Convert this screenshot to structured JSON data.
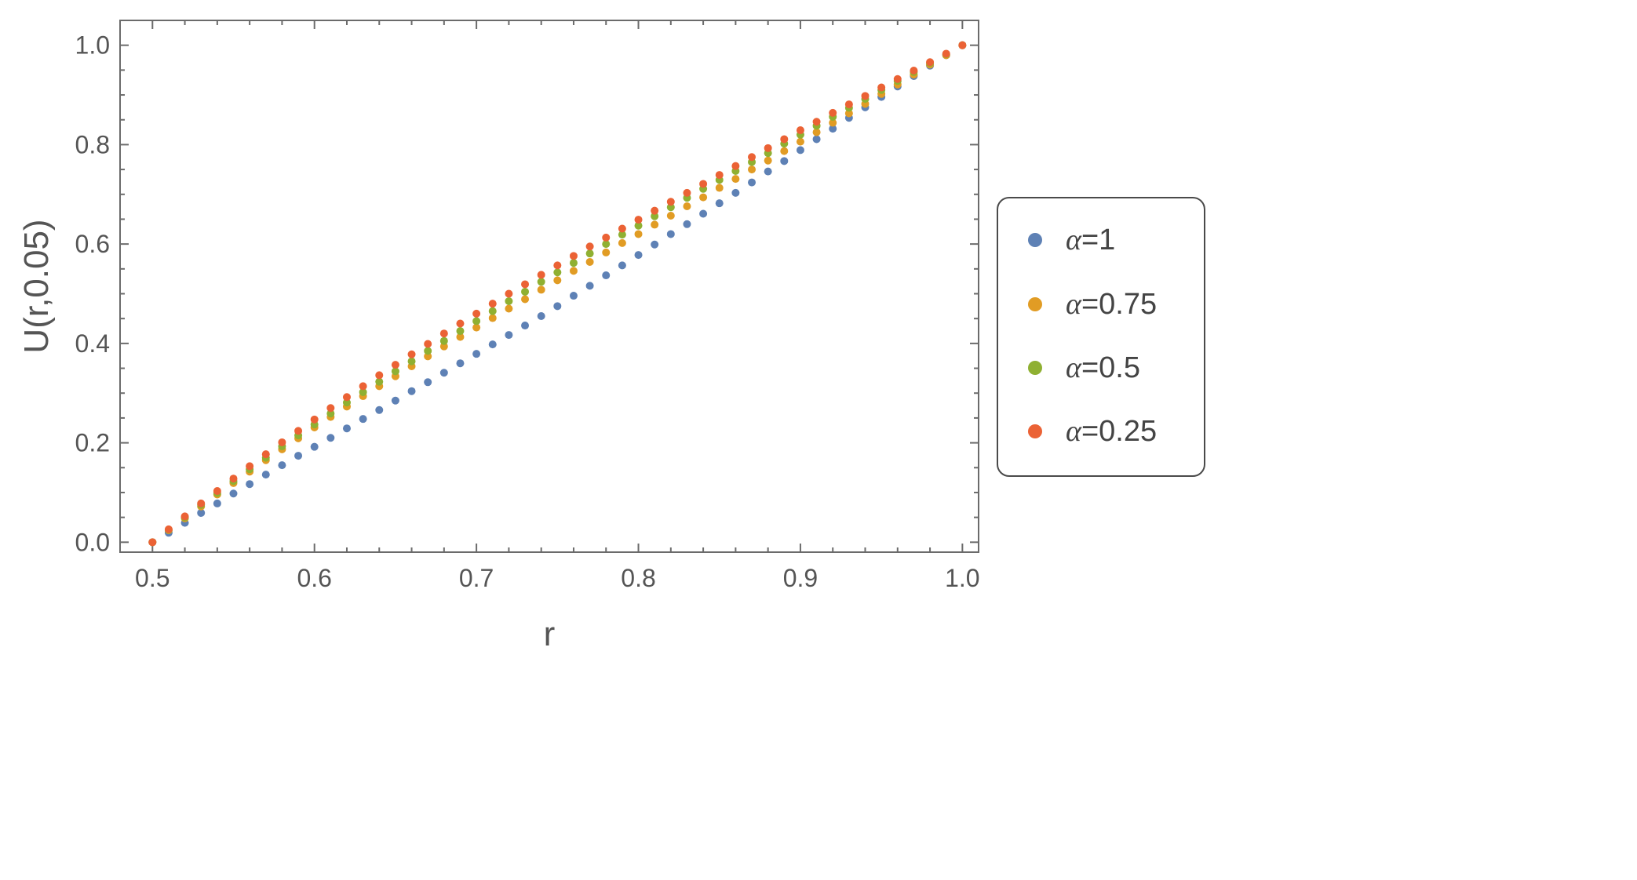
{
  "chart_data": {
    "type": "scatter",
    "title": "",
    "xlabel": "r",
    "ylabel": "U(r,0.05)",
    "xlim": [
      0.48,
      1.01
    ],
    "ylim": [
      -0.02,
      1.05
    ],
    "xticks": [
      0.5,
      0.6,
      0.7,
      0.8,
      0.9,
      1.0
    ],
    "xtick_labels": [
      "0.5",
      "0.6",
      "0.7",
      "0.8",
      "0.9",
      "1.0"
    ],
    "yticks": [
      0.0,
      0.2,
      0.4,
      0.6,
      0.8,
      1.0
    ],
    "ytick_labels": [
      "0.0",
      "0.2",
      "0.4",
      "0.6",
      "0.8",
      "1.0"
    ],
    "grid": false,
    "frame": true,
    "legend_position": "right",
    "x": [
      0.5,
      0.51,
      0.52,
      0.53,
      0.54,
      0.55,
      0.56,
      0.57,
      0.58,
      0.59,
      0.6,
      0.61,
      0.62,
      0.63,
      0.64,
      0.65,
      0.66,
      0.67,
      0.68,
      0.69,
      0.7,
      0.71,
      0.72,
      0.73,
      0.74,
      0.75,
      0.76,
      0.77,
      0.78,
      0.79,
      0.8,
      0.81,
      0.82,
      0.83,
      0.84,
      0.85,
      0.86,
      0.87,
      0.88,
      0.89,
      0.9,
      0.91,
      0.92,
      0.93,
      0.94,
      0.95,
      0.96,
      0.97,
      0.98,
      0.99,
      1.0
    ],
    "series": [
      {
        "name": "α=1",
        "symbol": "α",
        "value_text": "=1",
        "color": "#5e81b5",
        "values": [
          0.0,
          0.019,
          0.039,
          0.059,
          0.078,
          0.098,
          0.117,
          0.136,
          0.155,
          0.174,
          0.192,
          0.21,
          0.229,
          0.248,
          0.266,
          0.285,
          0.304,
          0.322,
          0.341,
          0.36,
          0.379,
          0.398,
          0.417,
          0.436,
          0.455,
          0.475,
          0.496,
          0.516,
          0.537,
          0.557,
          0.578,
          0.599,
          0.62,
          0.64,
          0.661,
          0.682,
          0.703,
          0.724,
          0.746,
          0.767,
          0.789,
          0.811,
          0.832,
          0.854,
          0.875,
          0.896,
          0.917,
          0.938,
          0.959,
          0.98,
          1.0
        ]
      },
      {
        "name": "α=0.75",
        "symbol": "α",
        "value_text": "=0.75",
        "color": "#e19c24",
        "values": [
          0.0,
          0.024,
          0.048,
          0.072,
          0.096,
          0.119,
          0.142,
          0.165,
          0.187,
          0.209,
          0.231,
          0.252,
          0.273,
          0.294,
          0.314,
          0.334,
          0.354,
          0.374,
          0.394,
          0.413,
          0.432,
          0.451,
          0.47,
          0.489,
          0.508,
          0.527,
          0.546,
          0.564,
          0.583,
          0.602,
          0.62,
          0.639,
          0.657,
          0.676,
          0.694,
          0.713,
          0.731,
          0.75,
          0.768,
          0.787,
          0.806,
          0.825,
          0.844,
          0.863,
          0.882,
          0.902,
          0.921,
          0.941,
          0.961,
          0.98,
          1.0
        ]
      },
      {
        "name": "α=0.5",
        "symbol": "α",
        "value_text": "=0.5",
        "color": "#8fb032",
        "values": [
          0.0,
          0.025,
          0.05,
          0.075,
          0.099,
          0.123,
          0.147,
          0.17,
          0.193,
          0.215,
          0.237,
          0.259,
          0.281,
          0.302,
          0.323,
          0.344,
          0.364,
          0.385,
          0.405,
          0.425,
          0.445,
          0.465,
          0.485,
          0.504,
          0.524,
          0.543,
          0.562,
          0.581,
          0.6,
          0.619,
          0.637,
          0.656,
          0.674,
          0.693,
          0.711,
          0.729,
          0.747,
          0.765,
          0.783,
          0.802,
          0.82,
          0.838,
          0.856,
          0.874,
          0.892,
          0.91,
          0.928,
          0.946,
          0.964,
          0.982,
          1.0
        ]
      },
      {
        "name": "α=0.25",
        "symbol": "α",
        "value_text": "=0.25",
        "color": "#eb6235",
        "values": [
          0.0,
          0.026,
          0.052,
          0.078,
          0.103,
          0.128,
          0.153,
          0.177,
          0.201,
          0.224,
          0.247,
          0.27,
          0.292,
          0.314,
          0.336,
          0.357,
          0.378,
          0.399,
          0.42,
          0.44,
          0.46,
          0.48,
          0.5,
          0.519,
          0.538,
          0.557,
          0.576,
          0.595,
          0.613,
          0.631,
          0.649,
          0.667,
          0.685,
          0.703,
          0.721,
          0.739,
          0.757,
          0.775,
          0.793,
          0.811,
          0.829,
          0.846,
          0.864,
          0.881,
          0.898,
          0.915,
          0.932,
          0.949,
          0.966,
          0.983,
          1.0
        ]
      }
    ]
  }
}
